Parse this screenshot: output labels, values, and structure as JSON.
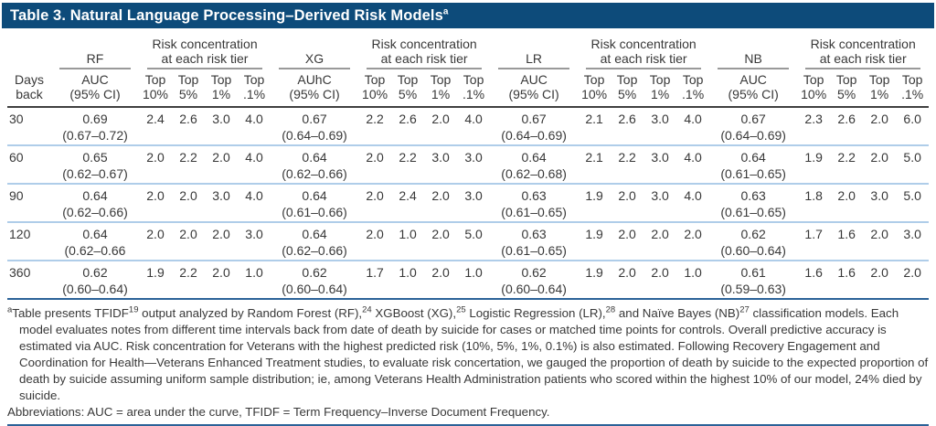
{
  "colors": {
    "header-bar": "#0d4b7a",
    "rule-dark": "#404040",
    "rule-blue": "#2b6298",
    "row-separator": "#afcde9",
    "group-underline": "#999999",
    "text": "#383838"
  },
  "title": {
    "segments": [
      {
        "text": "Table 3. Natural Language Processing–Derived Risk Models",
        "sup": false
      },
      {
        "text": "a",
        "sup": true
      }
    ]
  },
  "table": {
    "days_header": [
      "Days",
      "back"
    ],
    "risk_header": [
      "Risk concentration",
      "at each risk tier"
    ],
    "tier_headers": [
      [
        "Top",
        "10%"
      ],
      [
        "Top",
        "5%"
      ],
      [
        "Top",
        "1%"
      ],
      [
        "Top",
        ".1%"
      ]
    ],
    "groups": [
      {
        "model": "RF",
        "value_header": [
          "AUC",
          "(95% CI)"
        ]
      },
      {
        "model": "XG",
        "value_header": [
          "AUhC",
          "(95% CI)"
        ]
      },
      {
        "model": "LR",
        "value_header": [
          "AUC",
          "(95% CI)"
        ]
      },
      {
        "model": "NB",
        "value_header": [
          "AUC",
          "(95% CI)"
        ]
      }
    ],
    "rows": [
      {
        "days": "30",
        "models": [
          {
            "est": "0.69",
            "ci": "(0.67–0.72)",
            "tiers": [
              "2.4",
              "2.6",
              "3.0",
              "4.0"
            ]
          },
          {
            "est": "0.67",
            "ci": "(0.64–0.69)",
            "tiers": [
              "2.2",
              "2.6",
              "2.0",
              "4.0"
            ]
          },
          {
            "est": "0.67",
            "ci": "(0.64–0.69)",
            "tiers": [
              "2.1",
              "2.6",
              "3.0",
              "4.0"
            ]
          },
          {
            "est": "0.67",
            "ci": "(0.64–0.69)",
            "tiers": [
              "2.3",
              "2.6",
              "2.0",
              "6.0"
            ]
          }
        ]
      },
      {
        "days": "60",
        "models": [
          {
            "est": "0.65",
            "ci": "(0.62–0.67)",
            "tiers": [
              "2.0",
              "2.2",
              "2.0",
              "4.0"
            ]
          },
          {
            "est": "0.64",
            "ci": "(0.62–0.66)",
            "tiers": [
              "2.0",
              "2.2",
              "3.0",
              "3.0"
            ]
          },
          {
            "est": "0.64",
            "ci": "(0.62–0.68)",
            "tiers": [
              "2.1",
              "2.2",
              "3.0",
              "4.0"
            ]
          },
          {
            "est": "0.64",
            "ci": "(0.61–0.65)",
            "tiers": [
              "1.9",
              "2.2",
              "2.0",
              "5.0"
            ]
          }
        ]
      },
      {
        "days": "90",
        "models": [
          {
            "est": "0.64",
            "ci": "(0.62–0.66)",
            "tiers": [
              "2.0",
              "2.0",
              "3.0",
              "4.0"
            ]
          },
          {
            "est": "0.64",
            "ci": "(0.61–0.66)",
            "tiers": [
              "2.0",
              "2.4",
              "2.0",
              "3.0"
            ]
          },
          {
            "est": "0.63",
            "ci": "(0.61–0.65)",
            "tiers": [
              "1.9",
              "2.0",
              "3.0",
              "4.0"
            ]
          },
          {
            "est": "0.63",
            "ci": "(0.61–0.65)",
            "tiers": [
              "1.8",
              "2.0",
              "3.0",
              "5.0"
            ]
          }
        ]
      },
      {
        "days": "120",
        "models": [
          {
            "est": "0.64",
            "ci": "(0.62–0.66",
            "tiers": [
              "2.0",
              "2.0",
              "2.0",
              "3.0"
            ]
          },
          {
            "est": "0.64",
            "ci": "(0.62–0.66)",
            "tiers": [
              "2.0",
              "1.0",
              "2.0",
              "5.0"
            ]
          },
          {
            "est": "0.63",
            "ci": "(0.61–0.65)",
            "tiers": [
              "1.9",
              "2.0",
              "2.0",
              "2.0"
            ]
          },
          {
            "est": "0.62",
            "ci": "(0.60–0.64)",
            "tiers": [
              "1.7",
              "1.6",
              "2.0",
              "3.0"
            ]
          }
        ]
      },
      {
        "days": "360",
        "models": [
          {
            "est": "0.62",
            "ci": "(0.60–0.64)",
            "tiers": [
              "1.9",
              "2.2",
              "2.0",
              "1.0"
            ]
          },
          {
            "est": "0.62",
            "ci": "(0.60–0.64)",
            "tiers": [
              "1.7",
              "1.0",
              "2.0",
              "1.0"
            ]
          },
          {
            "est": "0.62",
            "ci": "(0.60–0.64)",
            "tiers": [
              "1.9",
              "2.0",
              "2.0",
              "1.0"
            ]
          },
          {
            "est": "0.61",
            "ci": "(0.59–0.63)",
            "tiers": [
              "1.6",
              "1.6",
              "2.0",
              "2.0"
            ]
          }
        ]
      }
    ]
  },
  "footnotes": {
    "note_a_segments": [
      {
        "text": "a",
        "sup": true
      },
      {
        "text": "Table presents TFIDF",
        "sup": false
      },
      {
        "text": "19",
        "sup": true
      },
      {
        "text": " output analyzed by Random Forest (RF),",
        "sup": false
      },
      {
        "text": "24",
        "sup": true
      },
      {
        "text": " XGBoost (XG),",
        "sup": false
      },
      {
        "text": "25",
        "sup": true
      },
      {
        "text": " Logistic Regression (LR),",
        "sup": false
      },
      {
        "text": "28",
        "sup": true
      },
      {
        "text": " and Naïve Bayes (NB)",
        "sup": false
      },
      {
        "text": "27",
        "sup": true
      },
      {
        "text": " classification models. Each model evaluates notes from different time intervals back from date of death by suicide for cases or matched time points for controls. Overall predictive accuracy is estimated via AUC. Risk concentration for Veterans with the highest predicted risk (10%, 5%, 1%, 0.1%) is also estimated. Following Recovery Engagement and Coordination for Health—Veterans Enhanced Treatment studies, to evaluate risk concertation, we gauged the proportion of death by suicide to the expected proportion of death by suicide assuming uniform sample distribution; ie, among Veterans Health Administration patients who scored within the highest 10% of our model, 24% died by suicide.",
        "sup": false
      }
    ],
    "abbreviations": "Abbreviations: AUC = area under the curve, TFIDF = Term Frequency–Inverse Document Frequency."
  }
}
